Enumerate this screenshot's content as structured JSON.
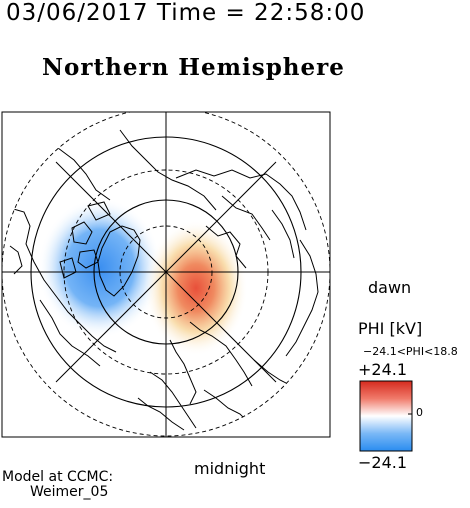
{
  "header": {
    "time": "03/06/2017 Time = 22:58:00",
    "title": "Northern Hemisphere"
  },
  "map": {
    "dawn_label": "dawn",
    "midnight_label": "midnight",
    "negative_cell_color": "#3b8ff0",
    "positive_cell_color": "#e8503a"
  },
  "colorbar": {
    "title": "PHI [kV]",
    "range": "−24.1<PHI<18.8",
    "max_label": "+24.1",
    "min_label": "−24.1",
    "zero_label": "0",
    "colors": [
      "#d62a1e",
      "#ffffff",
      "#2a8cf0"
    ]
  },
  "footer": {
    "model_line1": "Model at CCMC:",
    "model_line2": "Weimer_05"
  }
}
